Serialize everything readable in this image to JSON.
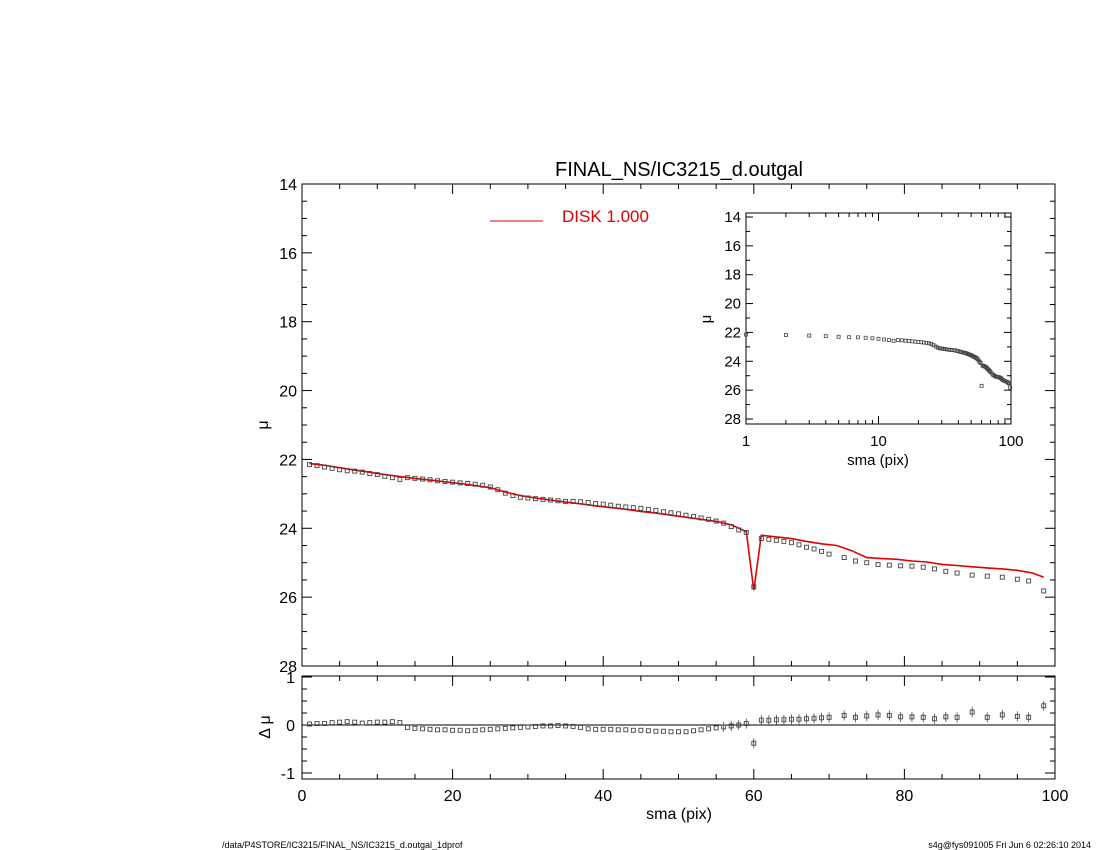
{
  "chart_data": {
    "title": "FINAL_NS/IC3215_d.outgal",
    "legend": {
      "label": "DISK  1.000",
      "color": "#e00000",
      "placement": "top-center"
    },
    "main": {
      "type": "scatter",
      "xlim": [
        0,
        100
      ],
      "ylim": [
        28,
        14
      ],
      "ylabel": "μ",
      "y_ticks": [
        "14",
        "16",
        "18",
        "20",
        "22",
        "24",
        "26",
        "28"
      ],
      "observed_points": [
        [
          1,
          22.15
        ],
        [
          2,
          22.18
        ],
        [
          3,
          22.22
        ],
        [
          4,
          22.26
        ],
        [
          5,
          22.3
        ],
        [
          6,
          22.33
        ],
        [
          7,
          22.34
        ],
        [
          8,
          22.37
        ],
        [
          9,
          22.41
        ],
        [
          10,
          22.44
        ],
        [
          11,
          22.49
        ],
        [
          12,
          22.53
        ],
        [
          13,
          22.58
        ],
        [
          14,
          22.53
        ],
        [
          15,
          22.55
        ],
        [
          16,
          22.57
        ],
        [
          17,
          22.59
        ],
        [
          18,
          22.62
        ],
        [
          19,
          22.64
        ],
        [
          20,
          22.66
        ],
        [
          21,
          22.68
        ],
        [
          22,
          22.7
        ],
        [
          23,
          22.72
        ],
        [
          24,
          22.75
        ],
        [
          25,
          22.8
        ],
        [
          26,
          22.88
        ],
        [
          27,
          22.98
        ],
        [
          28,
          23.05
        ],
        [
          29,
          23.1
        ],
        [
          30,
          23.12
        ],
        [
          31,
          23.14
        ],
        [
          32,
          23.16
        ],
        [
          33,
          23.18
        ],
        [
          34,
          23.2
        ],
        [
          35,
          23.22
        ],
        [
          36,
          23.22
        ],
        [
          37,
          23.23
        ],
        [
          38,
          23.25
        ],
        [
          39,
          23.28
        ],
        [
          40,
          23.3
        ],
        [
          41,
          23.33
        ],
        [
          42,
          23.36
        ],
        [
          43,
          23.38
        ],
        [
          44,
          23.4
        ],
        [
          45,
          23.42
        ],
        [
          46,
          23.45
        ],
        [
          47,
          23.48
        ],
        [
          48,
          23.52
        ],
        [
          49,
          23.55
        ],
        [
          50,
          23.58
        ],
        [
          51,
          23.62
        ],
        [
          52,
          23.66
        ],
        [
          53,
          23.7
        ],
        [
          54,
          23.74
        ],
        [
          55,
          23.79
        ],
        [
          56,
          23.85
        ],
        [
          57,
          23.95
        ],
        [
          58,
          24.05
        ],
        [
          59,
          24.12
        ],
        [
          60,
          25.7
        ],
        [
          61,
          24.3
        ],
        [
          62,
          24.32
        ],
        [
          63,
          24.35
        ],
        [
          64,
          24.38
        ],
        [
          65,
          24.42
        ],
        [
          66,
          24.48
        ],
        [
          67,
          24.55
        ],
        [
          68,
          24.6
        ],
        [
          69,
          24.67
        ],
        [
          70,
          24.75
        ],
        [
          72,
          24.85
        ],
        [
          73.5,
          24.95
        ],
        [
          75,
          25.0
        ],
        [
          76.5,
          25.05
        ],
        [
          78,
          25.07
        ],
        [
          79.5,
          25.09
        ],
        [
          81,
          25.1
        ],
        [
          82.5,
          25.13
        ],
        [
          84,
          25.18
        ],
        [
          85.5,
          25.25
        ],
        [
          87,
          25.3
        ],
        [
          89,
          25.36
        ],
        [
          91,
          25.39
        ],
        [
          93,
          25.42
        ],
        [
          95,
          25.48
        ],
        [
          96.5,
          25.53
        ],
        [
          98.5,
          25.82
        ]
      ],
      "model_line": [
        [
          1,
          22.12
        ],
        [
          3,
          22.17
        ],
        [
          5,
          22.24
        ],
        [
          7,
          22.31
        ],
        [
          9,
          22.37
        ],
        [
          11,
          22.44
        ],
        [
          13,
          22.5
        ],
        [
          15,
          22.55
        ],
        [
          17,
          22.6
        ],
        [
          19,
          22.65
        ],
        [
          21,
          22.7
        ],
        [
          23,
          22.76
        ],
        [
          25,
          22.82
        ],
        [
          27,
          22.95
        ],
        [
          29,
          23.05
        ],
        [
          31,
          23.12
        ],
        [
          33,
          23.18
        ],
        [
          35,
          23.24
        ],
        [
          37,
          23.29
        ],
        [
          39,
          23.35
        ],
        [
          41,
          23.4
        ],
        [
          43,
          23.45
        ],
        [
          45,
          23.51
        ],
        [
          47,
          23.56
        ],
        [
          49,
          23.62
        ],
        [
          51,
          23.68
        ],
        [
          53,
          23.74
        ],
        [
          55,
          23.8
        ],
        [
          57,
          23.9
        ],
        [
          59,
          24.1
        ],
        [
          60,
          25.8
        ],
        [
          61,
          24.2
        ],
        [
          63,
          24.25
        ],
        [
          65,
          24.3
        ],
        [
          67,
          24.38
        ],
        [
          69,
          24.45
        ],
        [
          71,
          24.5
        ],
        [
          73,
          24.65
        ],
        [
          75,
          24.85
        ],
        [
          77,
          24.88
        ],
        [
          79,
          24.9
        ],
        [
          81,
          24.95
        ],
        [
          83,
          24.98
        ],
        [
          85,
          25.05
        ],
        [
          87,
          25.08
        ],
        [
          89,
          25.12
        ],
        [
          91,
          25.15
        ],
        [
          93,
          25.18
        ],
        [
          95,
          25.22
        ],
        [
          97,
          25.3
        ],
        [
          98.5,
          25.42
        ]
      ]
    },
    "residual": {
      "type": "scatter",
      "xlim": [
        0,
        100
      ],
      "ylim": [
        -1,
        1
      ],
      "ylabel": "Δ μ",
      "xlabel": "sma (pix)",
      "y_ticks": [
        "1",
        "0",
        "-1"
      ],
      "x_ticks": [
        "0",
        "20",
        "40",
        "60",
        "80",
        "100"
      ],
      "points": [
        [
          1,
          0.02
        ],
        [
          2,
          0.03
        ],
        [
          3,
          0.03
        ],
        [
          4,
          0.05
        ],
        [
          5,
          0.06
        ],
        [
          6,
          0.07
        ],
        [
          7,
          0.06
        ],
        [
          8,
          0.04
        ],
        [
          9,
          0.05
        ],
        [
          10,
          0.06
        ],
        [
          11,
          0.06
        ],
        [
          12,
          0.07
        ],
        [
          13,
          0.05
        ],
        [
          14,
          -0.05
        ],
        [
          15,
          -0.07
        ],
        [
          16,
          -0.08
        ],
        [
          17,
          -0.09
        ],
        [
          18,
          -0.1
        ],
        [
          19,
          -0.1
        ],
        [
          20,
          -0.11
        ],
        [
          21,
          -0.11
        ],
        [
          22,
          -0.12
        ],
        [
          23,
          -0.11
        ],
        [
          24,
          -0.1
        ],
        [
          25,
          -0.09
        ],
        [
          26,
          -0.08
        ],
        [
          27,
          -0.07
        ],
        [
          28,
          -0.06
        ],
        [
          29,
          -0.05
        ],
        [
          30,
          -0.04
        ],
        [
          31,
          -0.03
        ],
        [
          32,
          -0.02
        ],
        [
          33,
          -0.02
        ],
        [
          34,
          -0.01
        ],
        [
          35,
          -0.02
        ],
        [
          36,
          -0.03
        ],
        [
          37,
          -0.05
        ],
        [
          38,
          -0.08
        ],
        [
          39,
          -0.09
        ],
        [
          40,
          -0.09
        ],
        [
          41,
          -0.09
        ],
        [
          42,
          -0.1
        ],
        [
          43,
          -0.1
        ],
        [
          44,
          -0.11
        ],
        [
          45,
          -0.11
        ],
        [
          46,
          -0.12
        ],
        [
          47,
          -0.13
        ],
        [
          48,
          -0.13
        ],
        [
          49,
          -0.14
        ],
        [
          50,
          -0.14
        ],
        [
          51,
          -0.14
        ],
        [
          52,
          -0.12
        ],
        [
          53,
          -0.1
        ],
        [
          54,
          -0.08
        ],
        [
          55,
          -0.06
        ],
        [
          56,
          -0.04
        ],
        [
          57,
          -0.02
        ],
        [
          58,
          0.0
        ],
        [
          59,
          0.03
        ],
        [
          60,
          -0.38
        ],
        [
          61,
          0.1
        ],
        [
          62,
          0.1
        ],
        [
          63,
          0.11
        ],
        [
          64,
          0.11
        ],
        [
          65,
          0.12
        ],
        [
          66,
          0.12
        ],
        [
          67,
          0.13
        ],
        [
          68,
          0.14
        ],
        [
          69,
          0.15
        ],
        [
          70,
          0.16
        ],
        [
          72,
          0.2
        ],
        [
          73.5,
          0.16
        ],
        [
          75,
          0.19
        ],
        [
          76.5,
          0.21
        ],
        [
          78,
          0.2
        ],
        [
          79.5,
          0.17
        ],
        [
          81,
          0.17
        ],
        [
          82.5,
          0.16
        ],
        [
          84,
          0.13
        ],
        [
          85.5,
          0.17
        ],
        [
          87,
          0.16
        ],
        [
          89,
          0.27
        ],
        [
          91,
          0.16
        ],
        [
          93,
          0.21
        ],
        [
          95,
          0.18
        ],
        [
          96.5,
          0.16
        ],
        [
          98.5,
          0.4
        ]
      ]
    },
    "inset": {
      "type": "scatter",
      "x_scale": "log",
      "xlim": [
        1,
        100
      ],
      "ylim": [
        28,
        14
      ],
      "ylabel": "μ",
      "xlabel": "sma (pix)",
      "y_ticks": [
        "14",
        "16",
        "18",
        "20",
        "22",
        "24",
        "26",
        "28"
      ],
      "x_ticks": [
        "1",
        "10",
        "100"
      ]
    }
  },
  "footer": {
    "left": "/data/P4STORE/IC3215/FINAL_NS/IC3215_d.outgal_1dprof",
    "right": "s4g@fys091005  Fri Jun  6 02:26:10 2014"
  }
}
